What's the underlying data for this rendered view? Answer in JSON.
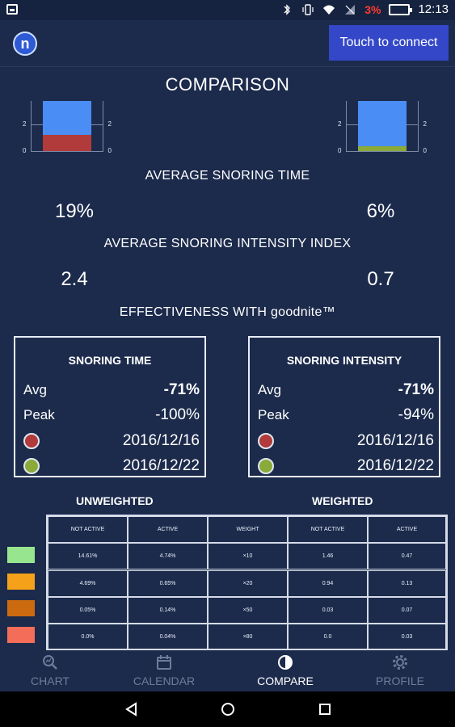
{
  "status_bar": {
    "battery_percent": "3%",
    "time": "12:13",
    "battery_color": "#ff3b30"
  },
  "app_bar": {
    "logo_letter": "n",
    "connect_button": "Touch to connect"
  },
  "title": "COMPARISON",
  "mini_charts": {
    "left": {
      "ticks": [
        "2",
        "0"
      ],
      "segments": [
        {
          "color": "#4a8df4",
          "value": 1.5
        },
        {
          "color": "#b13a3a",
          "value": 1.0
        }
      ]
    },
    "right": {
      "ticks": [
        "2",
        "0"
      ],
      "segments": [
        {
          "color": "#4a8df4",
          "value": 2.2
        },
        {
          "color": "#8aaa3a",
          "value": 0.3
        }
      ]
    }
  },
  "avg_snoring_time": {
    "label": "AVERAGE SNORING TIME",
    "left": "19%",
    "right": "6%"
  },
  "avg_intensity": {
    "label": "AVERAGE SNORING INTENSITY INDEX",
    "left": "2.4",
    "right": "0.7"
  },
  "effectiveness_label": "EFFECTIVENESS WITH goodnite™",
  "snoring_time_box": {
    "title": "SNORING TIME",
    "avg_label": "Avg",
    "avg_value": "-71%",
    "peak_label": "Peak",
    "peak_value": "-100%",
    "date_red": "2016/12/16",
    "date_green": "2016/12/22"
  },
  "snoring_intensity_box": {
    "title": "SNORING INTENSITY",
    "avg_label": "Avg",
    "avg_value": "-71%",
    "peak_label": "Peak",
    "peak_value": "-94%",
    "date_red": "2016/12/16",
    "date_green": "2016/12/22"
  },
  "table": {
    "unweighted_label": "UNWEIGHTED",
    "weighted_label": "WEIGHTED",
    "headers": [
      "NOT ACTIVE",
      "ACTIVE",
      "WEIGHT",
      "NOT ACTIVE",
      "ACTIVE"
    ],
    "rows": [
      {
        "color": "#98e58f",
        "cells": [
          "14.61%",
          "4.74%",
          "×10",
          "1.46",
          "0.47"
        ]
      },
      {
        "color": "#f5a11a",
        "cells": [
          "4.69%",
          "0.65%",
          "×20",
          "0.94",
          "0.13"
        ]
      },
      {
        "color": "#cc6a10",
        "cells": [
          "0.05%",
          "0.14%",
          "×50",
          "0.03",
          "0.07"
        ]
      },
      {
        "color": "#f36d59",
        "cells": [
          "0.0%",
          "0.04%",
          "×80",
          "0.0",
          "0.03"
        ]
      }
    ]
  },
  "bottom_nav": {
    "items": [
      {
        "label": "CHART",
        "icon": "chart-search-icon",
        "active": false
      },
      {
        "label": "CALENDAR",
        "icon": "calendar-icon",
        "active": false
      },
      {
        "label": "COMPARE",
        "icon": "compare-icon",
        "active": true
      },
      {
        "label": "PROFILE",
        "icon": "gear-icon",
        "active": false
      }
    ]
  }
}
